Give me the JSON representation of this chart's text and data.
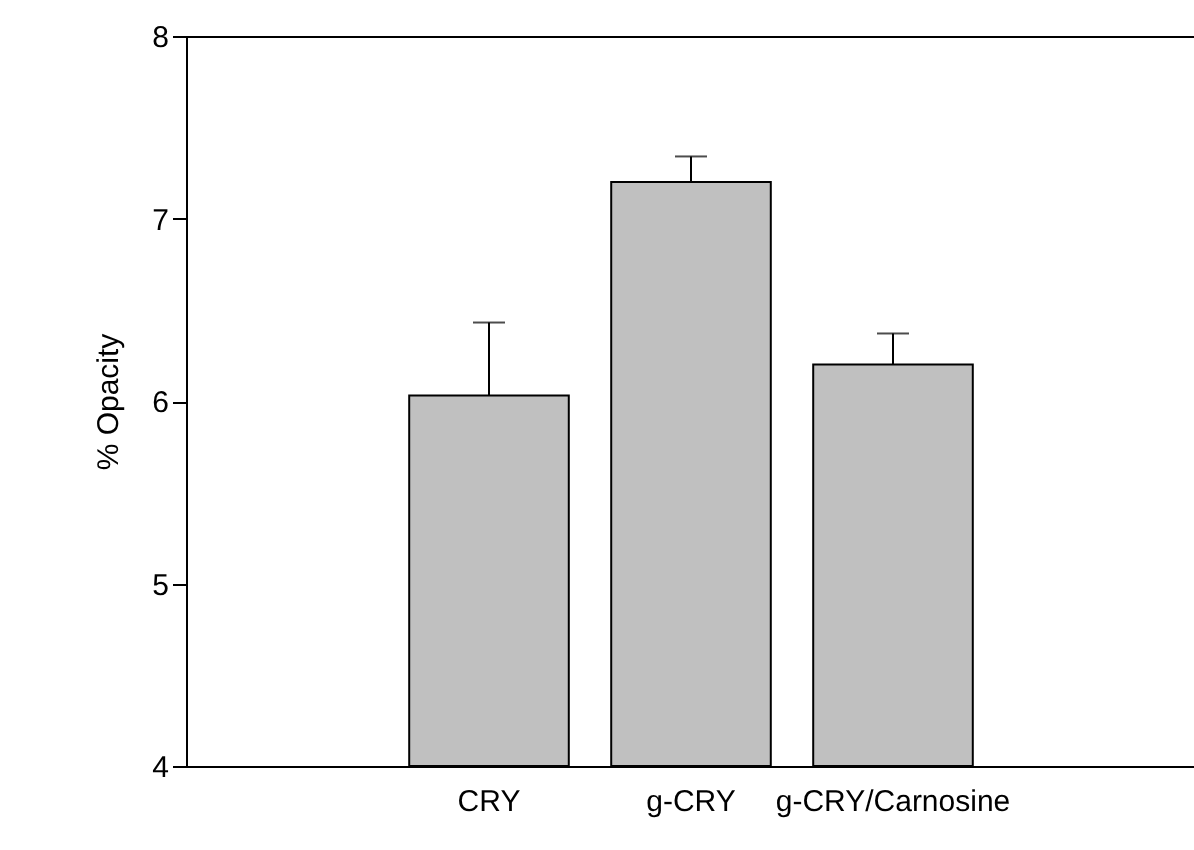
{
  "chart_data": {
    "type": "bar",
    "ylabel": "% Opacity",
    "categories": [
      null,
      "CRY",
      "g-CRY",
      "g-CRY/Carnosine",
      null
    ],
    "values": [
      null,
      6.03,
      7.2,
      6.2,
      null
    ],
    "errors": [
      null,
      [
        6.03,
        6.43
      ],
      [
        7.2,
        7.34
      ],
      [
        6.2,
        6.37
      ],
      null
    ],
    "color": "#c0c0c0",
    "ylim": [
      4,
      8
    ],
    "yticks": [
      4,
      5,
      6,
      7,
      8
    ],
    "grid": false
  }
}
